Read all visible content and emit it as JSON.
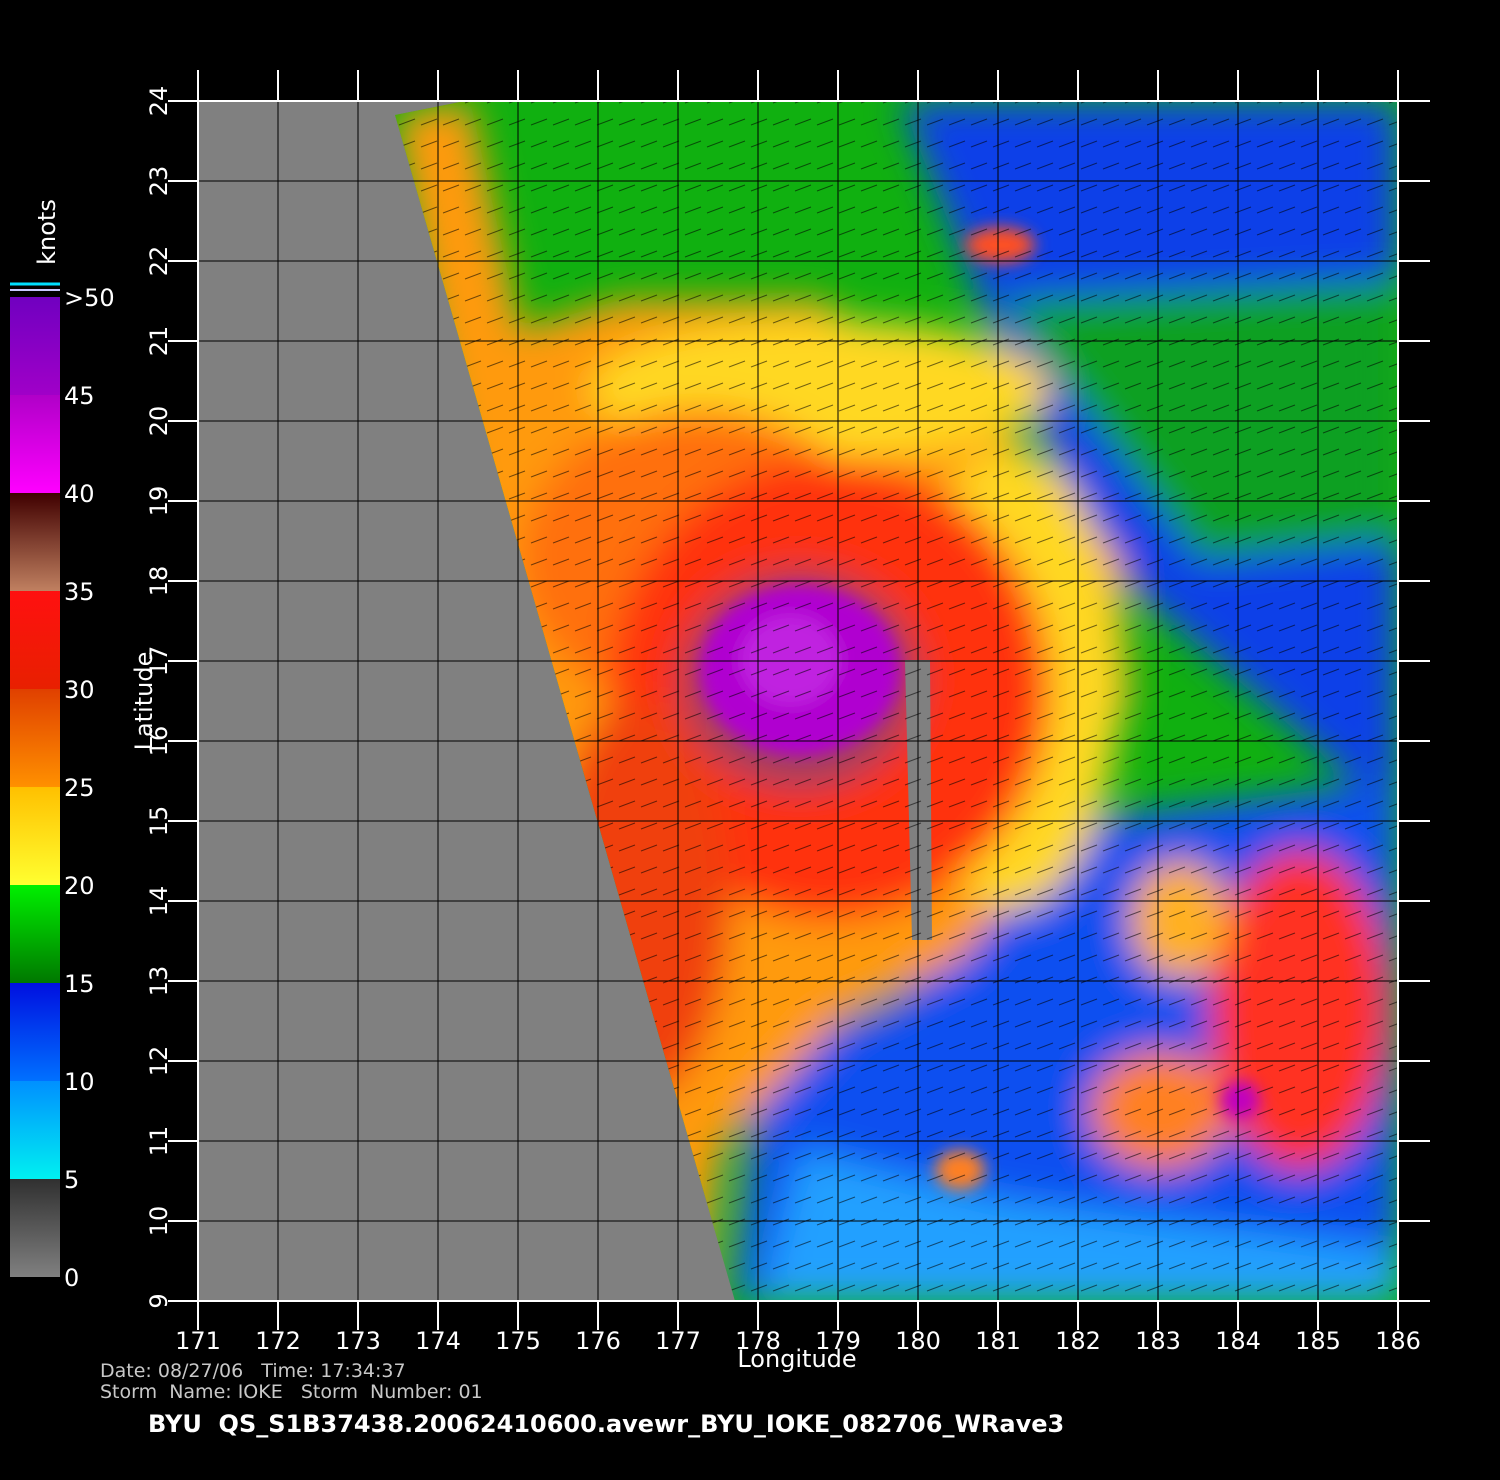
{
  "chart_data": {
    "type": "map",
    "xlabel": "Longitude",
    "ylabel": "Latitude",
    "xlim": [
      171,
      186
    ],
    "ylim": [
      9,
      24
    ],
    "xticks": [
      171,
      172,
      173,
      174,
      175,
      176,
      177,
      178,
      179,
      180,
      181,
      182,
      183,
      184,
      185,
      186
    ],
    "yticks": [
      9,
      10,
      11,
      12,
      13,
      14,
      15,
      16,
      17,
      18,
      19,
      20,
      21,
      22,
      23,
      24
    ],
    "grid": true,
    "colorbar": {
      "title": "knots",
      "lim": [
        0,
        50
      ],
      "ticks": [
        0,
        5,
        10,
        15,
        20,
        25,
        30,
        35,
        40,
        45,
        {
          "value": 50,
          "label": ">50"
        }
      ]
    },
    "footer": {
      "date_line": "Date: 08/27/06   Time: 17:34:37",
      "storm_line": "Storm  Name: IOKE   Storm  Number: 01",
      "file_name": "BYU  QS_S1B37438.20062410600.avewr_BYU_IOKE_082706_WRave3"
    }
  }
}
